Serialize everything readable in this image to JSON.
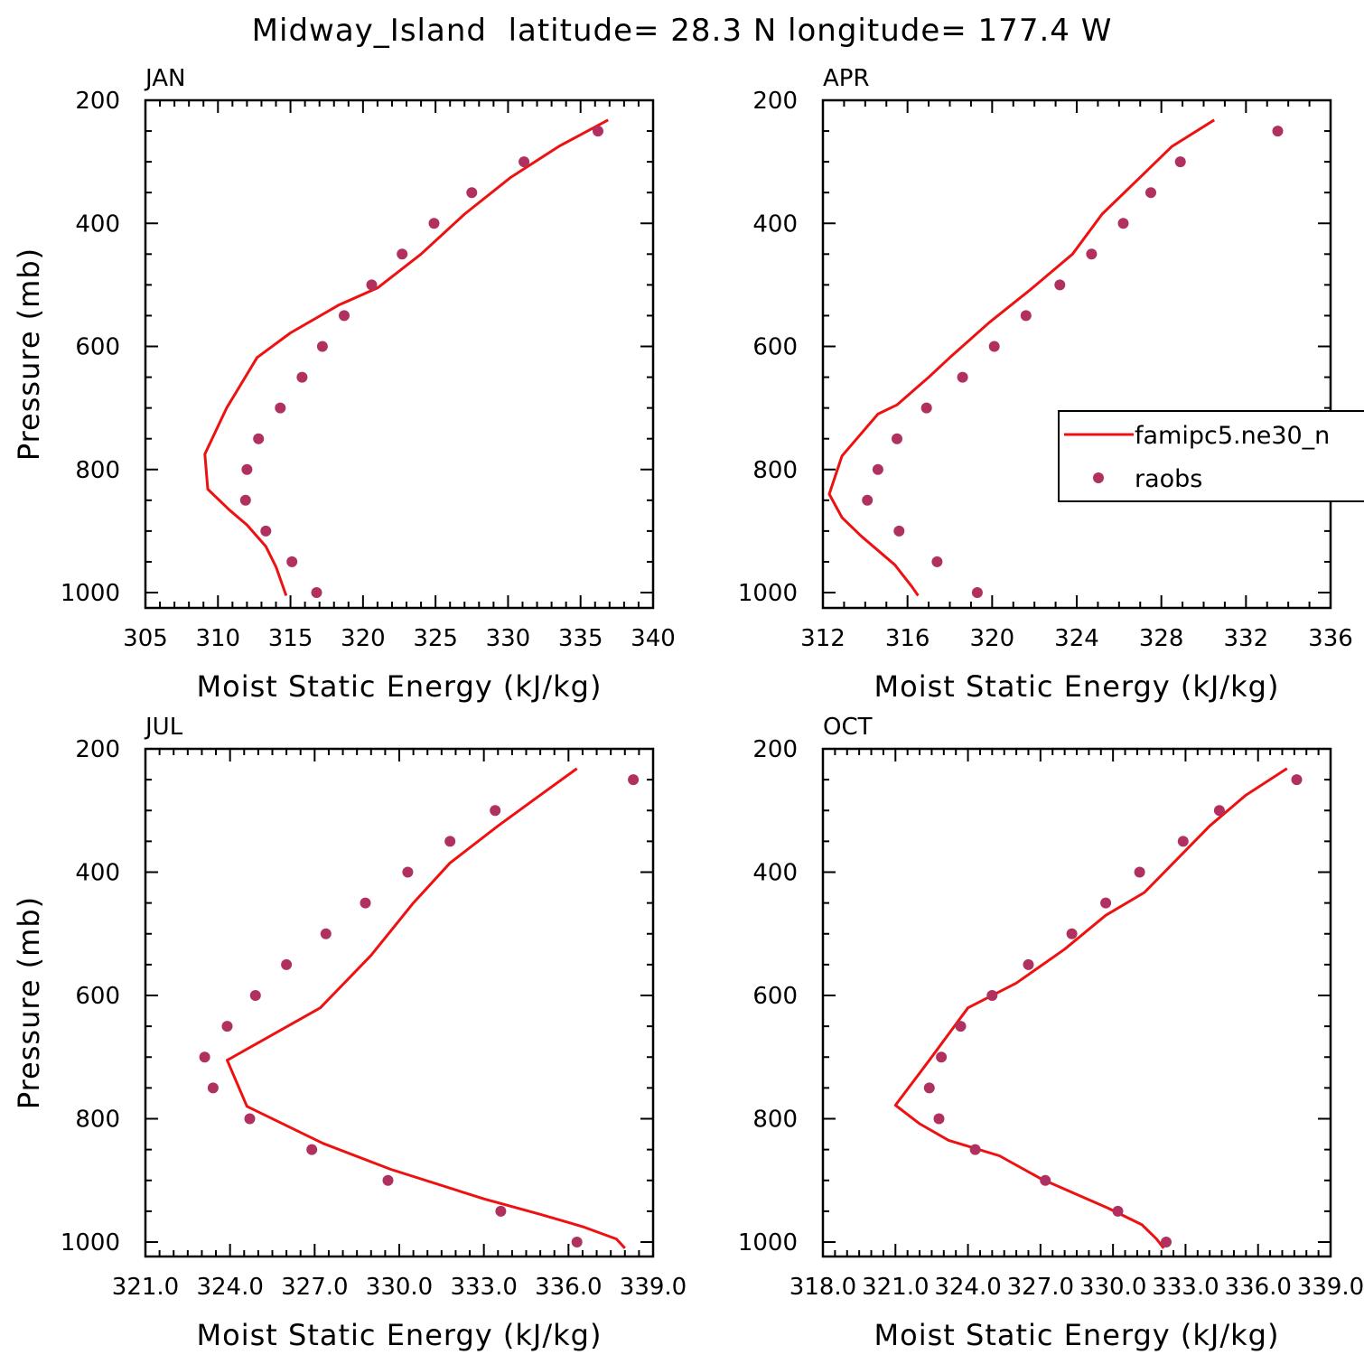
{
  "figure": {
    "title": "Midway_Island  latitude= 28.3 N longitude= 177.4 W"
  },
  "colors": {
    "model_line": "#ee1111",
    "obs_marker": "#b03060",
    "axes": "#000000"
  },
  "legend": {
    "placement": "right-middle of APR panel (clipped at figure edge)",
    "entries": [
      {
        "label": "famipc5.ne30_n",
        "kind": "line",
        "color": "#ee1111"
      },
      {
        "label": "raobs",
        "kind": "marker",
        "color": "#b03060"
      }
    ]
  },
  "chart_data": [
    {
      "type": "line",
      "title": "JAN",
      "xlabel": "Moist Static Energy (kJ/kg)",
      "ylabel": "Pressure (mb)",
      "xlim": [
        305,
        340
      ],
      "xticks": [
        305,
        310,
        315,
        320,
        325,
        330,
        335,
        340
      ],
      "xtick_labels": [
        "305",
        "310",
        "315",
        "320",
        "325",
        "330",
        "335",
        "340"
      ],
      "x_minor_step": 1,
      "ylim": [
        1025,
        200
      ],
      "yticks": [
        200,
        400,
        600,
        800,
        1000
      ],
      "ytick_labels": [
        "200",
        "400",
        "600",
        "800",
        "1000"
      ],
      "y_minor_step": 50,
      "grid": false,
      "series": [
        {
          "name": "famipc5.ne30_n",
          "kind": "line",
          "points": [
            [
              336.9,
              232
            ],
            [
              333.5,
              275
            ],
            [
              330.2,
              325
            ],
            [
              327,
              385
            ],
            [
              324,
              450
            ],
            [
              321,
              505
            ],
            [
              318.3,
              533
            ],
            [
              315,
              578
            ],
            [
              312.7,
              618
            ],
            [
              310.6,
              700
            ],
            [
              309.1,
              775
            ],
            [
              309.3,
              832
            ],
            [
              310.8,
              866
            ],
            [
              312,
              890
            ],
            [
              313.3,
              925
            ],
            [
              314,
              958
            ],
            [
              314.7,
              1005
            ]
          ]
        },
        {
          "name": "raobs",
          "kind": "marker",
          "points": [
            [
              336.2,
              250
            ],
            [
              331.1,
              300
            ],
            [
              327.5,
              350
            ],
            [
              324.9,
              400
            ],
            [
              322.7,
              450
            ],
            [
              320.6,
              500
            ],
            [
              318.7,
              550
            ],
            [
              317.2,
              600
            ],
            [
              315.8,
              650
            ],
            [
              314.3,
              700
            ],
            [
              312.8,
              750
            ],
            [
              312,
              800
            ],
            [
              311.9,
              850
            ],
            [
              313.3,
              900
            ],
            [
              315.1,
              950
            ],
            [
              316.8,
              1000
            ]
          ]
        }
      ]
    },
    {
      "type": "line",
      "title": "APR",
      "xlabel": "Moist Static Energy (kJ/kg)",
      "ylabel": "",
      "xlim": [
        312,
        336
      ],
      "xticks": [
        312,
        316,
        320,
        324,
        328,
        332,
        336
      ],
      "xtick_labels": [
        "312",
        "316",
        "320",
        "324",
        "328",
        "332",
        "336"
      ],
      "x_minor_step": 1,
      "ylim": [
        1025,
        200
      ],
      "yticks": [
        200,
        400,
        600,
        800,
        1000
      ],
      "ytick_labels": [
        "200",
        "400",
        "600",
        "800",
        "1000"
      ],
      "y_minor_step": 50,
      "grid": false,
      "series": [
        {
          "name": "famipc5.ne30_n",
          "kind": "line",
          "points": [
            [
              330.5,
              232
            ],
            [
              328.5,
              275
            ],
            [
              327,
              325
            ],
            [
              325.2,
              385
            ],
            [
              323.8,
              450
            ],
            [
              321.8,
              508
            ],
            [
              319.9,
              560
            ],
            [
              318,
              618
            ],
            [
              317,
              650
            ],
            [
              315.5,
              695
            ],
            [
              314.6,
              710
            ],
            [
              312.9,
              778
            ],
            [
              312.3,
              840
            ],
            [
              312.9,
              878
            ],
            [
              313.8,
              908
            ],
            [
              315.4,
              955
            ],
            [
              316.2,
              990
            ],
            [
              316.5,
              1005
            ]
          ]
        },
        {
          "name": "raobs",
          "kind": "marker",
          "points": [
            [
              333.5,
              250
            ],
            [
              328.9,
              300
            ],
            [
              327.5,
              350
            ],
            [
              326.2,
              400
            ],
            [
              324.7,
              450
            ],
            [
              323.2,
              500
            ],
            [
              321.6,
              550
            ],
            [
              320.1,
              600
            ],
            [
              318.6,
              650
            ],
            [
              316.9,
              700
            ],
            [
              315.5,
              750
            ],
            [
              314.6,
              800
            ],
            [
              314.1,
              850
            ],
            [
              315.6,
              900
            ],
            [
              317.4,
              950
            ],
            [
              319.3,
              1000
            ]
          ]
        }
      ]
    },
    {
      "type": "line",
      "title": "JUL",
      "xlabel": "Moist Static Energy (kJ/kg)",
      "ylabel": "Pressure (mb)",
      "xlim": [
        321,
        339
      ],
      "xticks": [
        321,
        324,
        327,
        330,
        333,
        336,
        339
      ],
      "xtick_labels": [
        "321.0",
        "324.0",
        "327.0",
        "330.0",
        "333.0",
        "336.0",
        "339.0"
      ],
      "x_minor_step": 0.5,
      "ylim": [
        1025,
        200
      ],
      "yticks": [
        200,
        400,
        600,
        800,
        1000
      ],
      "ytick_labels": [
        "200",
        "400",
        "600",
        "800",
        "1000"
      ],
      "y_minor_step": 50,
      "grid": false,
      "series": [
        {
          "name": "famipc5.ne30_n",
          "kind": "line",
          "points": [
            [
              336.3,
              232
            ],
            [
              335,
              275
            ],
            [
              333.5,
              325
            ],
            [
              331.8,
              385
            ],
            [
              330.5,
              450
            ],
            [
              329,
              535
            ],
            [
              327.2,
              620
            ],
            [
              323.9,
              705
            ],
            [
              324.6,
              780
            ],
            [
              327.3,
              840
            ],
            [
              329.7,
              882
            ],
            [
              333,
              930
            ],
            [
              335,
              955
            ],
            [
              336.5,
              975
            ],
            [
              337.7,
              995
            ],
            [
              338,
              1010
            ]
          ]
        },
        {
          "name": "raobs",
          "kind": "marker",
          "points": [
            [
              338.3,
              250
            ],
            [
              333.4,
              300
            ],
            [
              331.8,
              350
            ],
            [
              330.3,
              400
            ],
            [
              328.8,
              450
            ],
            [
              327.4,
              500
            ],
            [
              326,
              550
            ],
            [
              324.9,
              600
            ],
            [
              323.9,
              650
            ],
            [
              323.1,
              700
            ],
            [
              323.4,
              750
            ],
            [
              324.7,
              800
            ],
            [
              326.9,
              850
            ],
            [
              329.6,
              900
            ],
            [
              333.6,
              950
            ],
            [
              336.3,
              1000
            ]
          ]
        }
      ]
    },
    {
      "type": "line",
      "title": "OCT",
      "xlabel": "Moist Static Energy (kJ/kg)",
      "ylabel": "",
      "xlim": [
        318,
        339
      ],
      "xticks": [
        318,
        321,
        324,
        327,
        330,
        333,
        336,
        339
      ],
      "xtick_labels": [
        "318.0",
        "321.0",
        "324.0",
        "327.0",
        "330.0",
        "333.0",
        "336.0",
        "339.0"
      ],
      "x_minor_step": 0.5,
      "ylim": [
        1025,
        200
      ],
      "yticks": [
        200,
        400,
        600,
        800,
        1000
      ],
      "ytick_labels": [
        "200",
        "400",
        "600",
        "800",
        "1000"
      ],
      "y_minor_step": 50,
      "grid": false,
      "series": [
        {
          "name": "famipc5.ne30_n",
          "kind": "line",
          "points": [
            [
              337.2,
              232
            ],
            [
              335.5,
              275
            ],
            [
              334,
              325
            ],
            [
              332.5,
              385
            ],
            [
              331.3,
              433
            ],
            [
              329.7,
              470
            ],
            [
              328,
              525
            ],
            [
              326,
              580
            ],
            [
              324,
              620
            ],
            [
              322.4,
              705
            ],
            [
              321,
              778
            ],
            [
              322,
              808
            ],
            [
              323.2,
              835
            ],
            [
              325.3,
              860
            ],
            [
              327,
              897
            ],
            [
              329.8,
              945
            ],
            [
              331.2,
              972
            ],
            [
              331.8,
              995
            ],
            [
              332.1,
              1010
            ]
          ]
        },
        {
          "name": "raobs",
          "kind": "marker",
          "points": [
            [
              337.6,
              250
            ],
            [
              334.4,
              300
            ],
            [
              332.9,
              350
            ],
            [
              331.1,
              400
            ],
            [
              329.7,
              450
            ],
            [
              328.3,
              500
            ],
            [
              326.5,
              550
            ],
            [
              325,
              600
            ],
            [
              323.7,
              650
            ],
            [
              322.9,
              700
            ],
            [
              322.4,
              750
            ],
            [
              322.8,
              800
            ],
            [
              324.3,
              850
            ],
            [
              327.2,
              900
            ],
            [
              330.2,
              950
            ],
            [
              332.2,
              1000
            ]
          ]
        }
      ]
    }
  ]
}
